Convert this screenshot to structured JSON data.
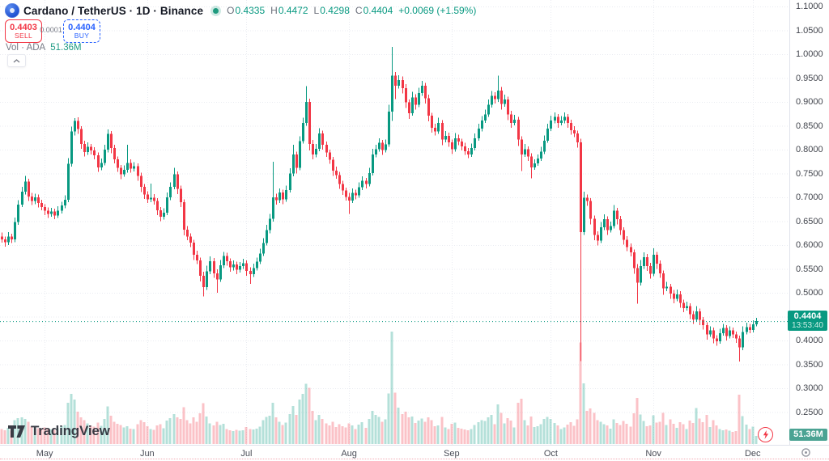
{
  "header": {
    "symbol_title": "Cardano / TetherUS · 1D · Binance",
    "ohlc": {
      "o_label": "O",
      "o": "0.4335",
      "h_label": "H",
      "h": "0.4472",
      "l_label": "L",
      "l": "0.4298",
      "c_label": "C",
      "c": "0.4404",
      "change": "+0.0069 (+1.59%)"
    },
    "sell": {
      "price": "0.4403",
      "label": "SELL"
    },
    "spread": "0.0001",
    "buy": {
      "price": "0.4404",
      "label": "BUY"
    },
    "volume_row": {
      "label": "Vol · ADA",
      "value": "51.36M"
    }
  },
  "price_scale": {
    "labels": [
      "1.1000",
      "1.0500",
      "1.0000",
      "0.9500",
      "0.9000",
      "0.8500",
      "0.8000",
      "0.7500",
      "0.7000",
      "0.6500",
      "0.6000",
      "0.5500",
      "0.5000",
      "0.4500",
      "0.4000",
      "0.3500",
      "0.3000",
      "0.2500"
    ],
    "current_price": "0.4404",
    "countdown": "13:53:40",
    "volume_label": "51.36M"
  },
  "footer": {
    "logo_text": "TradingView"
  },
  "colors": {
    "up": "#089981",
    "down": "#f23645",
    "vol_up": "rgba(8,153,129,0.30)",
    "vol_down": "rgba(242,54,69,0.30)",
    "buy_accent": "#2962ff",
    "sell_accent": "#f23645",
    "price_label_bg": "#089981",
    "volume_label_bg": "#4ba393",
    "grid": "#e9ebf1",
    "axis_border": "#e0e3eb",
    "axis_text": "#42454d",
    "muted_text": "#787b86",
    "title_text": "#131722"
  },
  "chart_data": {
    "type": "candlestick_with_volume",
    "title": "Cardano / TetherUS · 1D · Binance",
    "legend": "Vol · ADA",
    "y_axis": {
      "ticks": [
        1.1,
        1.05,
        1.0,
        0.95,
        0.9,
        0.85,
        0.8,
        0.75,
        0.7,
        0.65,
        0.6,
        0.55,
        0.5,
        0.45,
        0.4,
        0.35,
        0.3,
        0.25
      ],
      "grid": true
    },
    "x_axis_months": [
      {
        "label": "May",
        "day_index": 13
      },
      {
        "label": "Jun",
        "day_index": 44
      },
      {
        "label": "Jul",
        "day_index": 74
      },
      {
        "label": "Aug",
        "day_index": 105
      },
      {
        "label": "Sep",
        "day_index": 136
      },
      {
        "label": "Oct",
        "day_index": 166
      },
      {
        "label": "Nov",
        "day_index": 197
      },
      {
        "label": "Dec",
        "day_index": 227
      }
    ],
    "current_price": 0.4404,
    "current_volume_m": 51.36,
    "last_candle_ohlc": [
      0.4335,
      0.4472,
      0.4298,
      0.4404
    ],
    "first_open": 0.618,
    "candle_format": [
      "close",
      "upper_wick_pad",
      "lower_wick_pad",
      "volume_millions"
    ],
    "note_open_rule": "open equals previous close (continuous daily crypto candles)",
    "candles": [
      [
        0.612,
        0.008,
        0.007,
        95
      ],
      [
        0.606,
        0.006,
        0.009,
        88
      ],
      [
        0.618,
        0.009,
        0.006,
        102
      ],
      [
        0.612,
        0.006,
        0.008,
        85
      ],
      [
        0.648,
        0.01,
        0.006,
        150
      ],
      [
        0.685,
        0.009,
        0.006,
        165
      ],
      [
        0.712,
        0.01,
        0.005,
        170
      ],
      [
        0.733,
        0.012,
        0.006,
        160
      ],
      [
        0.702,
        0.006,
        0.01,
        140
      ],
      [
        0.692,
        0.007,
        0.008,
        110
      ],
      [
        0.7,
        0.008,
        0.006,
        105
      ],
      [
        0.688,
        0.006,
        0.009,
        100
      ],
      [
        0.68,
        0.007,
        0.007,
        95
      ],
      [
        0.672,
        0.006,
        0.009,
        105
      ],
      [
        0.665,
        0.007,
        0.008,
        98
      ],
      [
        0.67,
        0.008,
        0.006,
        92
      ],
      [
        0.662,
        0.006,
        0.008,
        90
      ],
      [
        0.672,
        0.009,
        0.005,
        100
      ],
      [
        0.683,
        0.008,
        0.006,
        112
      ],
      [
        0.695,
        0.009,
        0.006,
        120
      ],
      [
        0.77,
        0.012,
        0.005,
        262
      ],
      [
        0.838,
        0.01,
        0.006,
        318
      ],
      [
        0.86,
        0.006,
        0.008,
        281
      ],
      [
        0.843,
        0.008,
        0.01,
        205
      ],
      [
        0.812,
        0.006,
        0.01,
        170
      ],
      [
        0.795,
        0.007,
        0.009,
        150
      ],
      [
        0.806,
        0.009,
        0.006,
        130
      ],
      [
        0.798,
        0.006,
        0.008,
        118
      ],
      [
        0.788,
        0.007,
        0.008,
        110
      ],
      [
        0.763,
        0.006,
        0.01,
        135
      ],
      [
        0.772,
        0.009,
        0.006,
        115
      ],
      [
        0.8,
        0.01,
        0.005,
        160
      ],
      [
        0.833,
        0.009,
        0.006,
        238
      ],
      [
        0.803,
        0.006,
        0.011,
        180
      ],
      [
        0.78,
        0.007,
        0.009,
        140
      ],
      [
        0.762,
        0.006,
        0.009,
        128
      ],
      [
        0.748,
        0.006,
        0.01,
        120
      ],
      [
        0.758,
        0.009,
        0.005,
        105
      ],
      [
        0.772,
        0.038,
        0.006,
        112
      ],
      [
        0.76,
        0.008,
        0.008,
        98
      ],
      [
        0.765,
        0.009,
        0.006,
        94
      ],
      [
        0.745,
        0.006,
        0.01,
        125
      ],
      [
        0.722,
        0.007,
        0.011,
        150
      ],
      [
        0.706,
        0.006,
        0.009,
        138
      ],
      [
        0.696,
        0.007,
        0.008,
        112
      ],
      [
        0.699,
        0.03,
        0.006,
        96
      ],
      [
        0.692,
        0.008,
        0.007,
        90
      ],
      [
        0.673,
        0.006,
        0.01,
        118
      ],
      [
        0.659,
        0.007,
        0.009,
        125
      ],
      [
        0.668,
        0.009,
        0.006,
        100
      ],
      [
        0.7,
        0.01,
        0.005,
        148
      ],
      [
        0.722,
        0.009,
        0.006,
        165
      ],
      [
        0.748,
        0.014,
        0.005,
        190
      ],
      [
        0.718,
        0.006,
        0.011,
        170
      ],
      [
        0.69,
        0.007,
        0.01,
        158
      ],
      [
        0.632,
        0.006,
        0.012,
        232
      ],
      [
        0.618,
        0.008,
        0.008,
        150
      ],
      [
        0.605,
        0.007,
        0.009,
        130
      ],
      [
        0.58,
        0.006,
        0.011,
        168
      ],
      [
        0.568,
        0.008,
        0.008,
        140
      ],
      [
        0.536,
        0.006,
        0.012,
        195
      ],
      [
        0.512,
        0.008,
        0.02,
        258
      ],
      [
        0.545,
        0.012,
        0.006,
        175
      ],
      [
        0.566,
        0.01,
        0.006,
        130
      ],
      [
        0.541,
        0.007,
        0.01,
        118
      ],
      [
        0.528,
        0.008,
        0.028,
        142
      ],
      [
        0.558,
        0.011,
        0.005,
        120
      ],
      [
        0.577,
        0.009,
        0.006,
        128
      ],
      [
        0.566,
        0.007,
        0.009,
        96
      ],
      [
        0.553,
        0.006,
        0.009,
        88
      ],
      [
        0.559,
        0.009,
        0.006,
        82
      ],
      [
        0.548,
        0.006,
        0.009,
        90
      ],
      [
        0.556,
        0.008,
        0.006,
        84
      ],
      [
        0.562,
        0.009,
        0.006,
        88
      ],
      [
        0.546,
        0.006,
        0.01,
        108
      ],
      [
        0.539,
        0.007,
        0.02,
        96
      ],
      [
        0.552,
        0.009,
        0.006,
        92
      ],
      [
        0.565,
        0.009,
        0.005,
        98
      ],
      [
        0.582,
        0.01,
        0.005,
        110
      ],
      [
        0.604,
        0.01,
        0.005,
        150
      ],
      [
        0.631,
        0.011,
        0.005,
        172
      ],
      [
        0.655,
        0.01,
        0.006,
        180
      ],
      [
        0.7,
        0.075,
        0.006,
        260
      ],
      [
        0.694,
        0.008,
        0.009,
        170
      ],
      [
        0.71,
        0.009,
        0.006,
        140
      ],
      [
        0.696,
        0.006,
        0.01,
        120
      ],
      [
        0.715,
        0.01,
        0.005,
        135
      ],
      [
        0.75,
        0.011,
        0.005,
        190
      ],
      [
        0.79,
        0.02,
        0.006,
        240
      ],
      [
        0.762,
        0.006,
        0.012,
        185
      ],
      [
        0.818,
        0.01,
        0.005,
        282
      ],
      [
        0.856,
        0.011,
        0.005,
        318
      ],
      [
        0.9,
        0.033,
        0.006,
        382
      ],
      [
        0.812,
        0.007,
        0.014,
        355
      ],
      [
        0.79,
        0.008,
        0.01,
        210
      ],
      [
        0.802,
        0.01,
        0.006,
        150
      ],
      [
        0.834,
        0.011,
        0.005,
        185
      ],
      [
        0.81,
        0.006,
        0.01,
        160
      ],
      [
        0.794,
        0.007,
        0.009,
        130
      ],
      [
        0.779,
        0.006,
        0.009,
        118
      ],
      [
        0.756,
        0.006,
        0.011,
        140
      ],
      [
        0.747,
        0.008,
        0.008,
        108
      ],
      [
        0.728,
        0.006,
        0.01,
        125
      ],
      [
        0.714,
        0.007,
        0.009,
        112
      ],
      [
        0.701,
        0.006,
        0.008,
        105
      ],
      [
        0.693,
        0.008,
        0.028,
        130
      ],
      [
        0.709,
        0.01,
        0.005,
        118
      ],
      [
        0.704,
        0.007,
        0.008,
        95
      ],
      [
        0.721,
        0.01,
        0.005,
        122
      ],
      [
        0.735,
        0.009,
        0.006,
        138
      ],
      [
        0.728,
        0.006,
        0.009,
        102
      ],
      [
        0.751,
        0.011,
        0.005,
        158
      ],
      [
        0.79,
        0.012,
        0.005,
        210
      ],
      [
        0.801,
        0.009,
        0.006,
        185
      ],
      [
        0.814,
        0.01,
        0.005,
        172
      ],
      [
        0.799,
        0.006,
        0.01,
        140
      ],
      [
        0.811,
        0.01,
        0.005,
        155
      ],
      [
        0.88,
        0.014,
        0.005,
        320
      ],
      [
        0.955,
        0.06,
        0.02,
        712
      ],
      [
        0.934,
        0.008,
        0.028,
        325
      ],
      [
        0.946,
        0.01,
        0.006,
        230
      ],
      [
        0.929,
        0.007,
        0.011,
        190
      ],
      [
        0.899,
        0.008,
        0.012,
        205
      ],
      [
        0.876,
        0.006,
        0.012,
        170
      ],
      [
        0.909,
        0.012,
        0.005,
        175
      ],
      [
        0.894,
        0.007,
        0.01,
        132
      ],
      [
        0.919,
        0.011,
        0.005,
        148
      ],
      [
        0.934,
        0.01,
        0.006,
        162
      ],
      [
        0.908,
        0.006,
        0.011,
        140
      ],
      [
        0.871,
        0.007,
        0.012,
        168
      ],
      [
        0.846,
        0.006,
        0.01,
        150
      ],
      [
        0.838,
        0.008,
        0.008,
        112
      ],
      [
        0.856,
        0.011,
        0.005,
        118
      ],
      [
        0.821,
        0.006,
        0.012,
        172
      ],
      [
        0.829,
        0.01,
        0.006,
        105
      ],
      [
        0.815,
        0.007,
        0.009,
        95
      ],
      [
        0.801,
        0.006,
        0.01,
        128
      ],
      [
        0.824,
        0.011,
        0.005,
        135
      ],
      [
        0.817,
        0.007,
        0.008,
        102
      ],
      [
        0.807,
        0.006,
        0.009,
        98
      ],
      [
        0.797,
        0.007,
        0.008,
        92
      ],
      [
        0.79,
        0.006,
        0.008,
        88
      ],
      [
        0.803,
        0.01,
        0.005,
        94
      ],
      [
        0.824,
        0.01,
        0.005,
        120
      ],
      [
        0.844,
        0.01,
        0.005,
        138
      ],
      [
        0.861,
        0.009,
        0.006,
        150
      ],
      [
        0.874,
        0.01,
        0.005,
        145
      ],
      [
        0.894,
        0.011,
        0.005,
        168
      ],
      [
        0.913,
        0.01,
        0.006,
        185
      ],
      [
        0.906,
        0.007,
        0.009,
        125
      ],
      [
        0.924,
        0.031,
        0.006,
        252
      ],
      [
        0.896,
        0.007,
        0.012,
        198
      ],
      [
        0.905,
        0.01,
        0.006,
        130
      ],
      [
        0.874,
        0.006,
        0.012,
        165
      ],
      [
        0.856,
        0.007,
        0.01,
        148
      ],
      [
        0.863,
        0.01,
        0.005,
        105
      ],
      [
        0.821,
        0.006,
        0.013,
        262
      ],
      [
        0.79,
        0.007,
        0.035,
        288
      ],
      [
        0.801,
        0.011,
        0.005,
        152
      ],
      [
        0.786,
        0.006,
        0.01,
        118
      ],
      [
        0.763,
        0.006,
        0.023,
        175
      ],
      [
        0.771,
        0.009,
        0.005,
        108
      ],
      [
        0.781,
        0.009,
        0.005,
        112
      ],
      [
        0.796,
        0.01,
        0.005,
        125
      ],
      [
        0.819,
        0.011,
        0.005,
        158
      ],
      [
        0.844,
        0.01,
        0.005,
        172
      ],
      [
        0.861,
        0.01,
        0.005,
        160
      ],
      [
        0.869,
        0.009,
        0.006,
        132
      ],
      [
        0.856,
        0.006,
        0.01,
        118
      ],
      [
        0.861,
        0.009,
        0.005,
        96
      ],
      [
        0.869,
        0.009,
        0.006,
        104
      ],
      [
        0.856,
        0.006,
        0.01,
        122
      ],
      [
        0.841,
        0.007,
        0.01,
        138
      ],
      [
        0.834,
        0.008,
        0.008,
        115
      ],
      [
        0.815,
        0.006,
        0.011,
        156
      ],
      [
        0.627,
        0.008,
        0.27,
        642
      ],
      [
        0.699,
        0.013,
        0.006,
        385
      ],
      [
        0.692,
        0.007,
        0.01,
        210
      ],
      [
        0.655,
        0.006,
        0.012,
        225
      ],
      [
        0.621,
        0.007,
        0.011,
        198
      ],
      [
        0.609,
        0.008,
        0.01,
        150
      ],
      [
        0.637,
        0.011,
        0.005,
        142
      ],
      [
        0.654,
        0.01,
        0.006,
        125
      ],
      [
        0.631,
        0.006,
        0.01,
        118
      ],
      [
        0.64,
        0.009,
        0.005,
        98
      ],
      [
        0.672,
        0.012,
        0.005,
        156
      ],
      [
        0.654,
        0.006,
        0.011,
        132
      ],
      [
        0.631,
        0.007,
        0.01,
        120
      ],
      [
        0.611,
        0.006,
        0.01,
        146
      ],
      [
        0.596,
        0.008,
        0.009,
        128
      ],
      [
        0.585,
        0.007,
        0.009,
        110
      ],
      [
        0.552,
        0.006,
        0.012,
        195
      ],
      [
        0.521,
        0.008,
        0.044,
        292
      ],
      [
        0.556,
        0.013,
        0.006,
        188
      ],
      [
        0.575,
        0.01,
        0.006,
        145
      ],
      [
        0.556,
        0.006,
        0.01,
        112
      ],
      [
        0.54,
        0.007,
        0.01,
        118
      ],
      [
        0.58,
        0.013,
        0.005,
        182
      ],
      [
        0.561,
        0.006,
        0.011,
        135
      ],
      [
        0.541,
        0.007,
        0.01,
        142
      ],
      [
        0.509,
        0.006,
        0.013,
        198
      ],
      [
        0.513,
        0.01,
        0.006,
        120
      ],
      [
        0.498,
        0.006,
        0.011,
        155
      ],
      [
        0.487,
        0.008,
        0.009,
        128
      ],
      [
        0.497,
        0.01,
        0.005,
        102
      ],
      [
        0.479,
        0.006,
        0.01,
        138
      ],
      [
        0.468,
        0.007,
        0.009,
        125
      ],
      [
        0.472,
        0.009,
        0.005,
        95
      ],
      [
        0.455,
        0.006,
        0.01,
        148
      ],
      [
        0.444,
        0.007,
        0.009,
        132
      ],
      [
        0.461,
        0.011,
        0.005,
        228
      ],
      [
        0.443,
        0.006,
        0.011,
        162
      ],
      [
        0.432,
        0.006,
        0.009,
        138
      ],
      [
        0.413,
        0.006,
        0.011,
        185
      ],
      [
        0.421,
        0.009,
        0.005,
        108
      ],
      [
        0.404,
        0.006,
        0.01,
        152
      ],
      [
        0.398,
        0.007,
        0.009,
        118
      ],
      [
        0.415,
        0.01,
        0.005,
        96
      ],
      [
        0.426,
        0.009,
        0.005,
        88
      ],
      [
        0.409,
        0.006,
        0.009,
        92
      ],
      [
        0.421,
        0.009,
        0.005,
        85
      ],
      [
        0.413,
        0.006,
        0.008,
        78
      ],
      [
        0.404,
        0.006,
        0.009,
        82
      ],
      [
        0.386,
        0.006,
        0.03,
        312
      ],
      [
        0.418,
        0.012,
        0.006,
        178
      ],
      [
        0.428,
        0.009,
        0.005,
        122
      ],
      [
        0.422,
        0.007,
        0.007,
        95
      ],
      [
        0.4335,
        0.009,
        0.005,
        110
      ],
      [
        0.4404,
        0.0068,
        0.0037,
        51.36
      ]
    ]
  }
}
